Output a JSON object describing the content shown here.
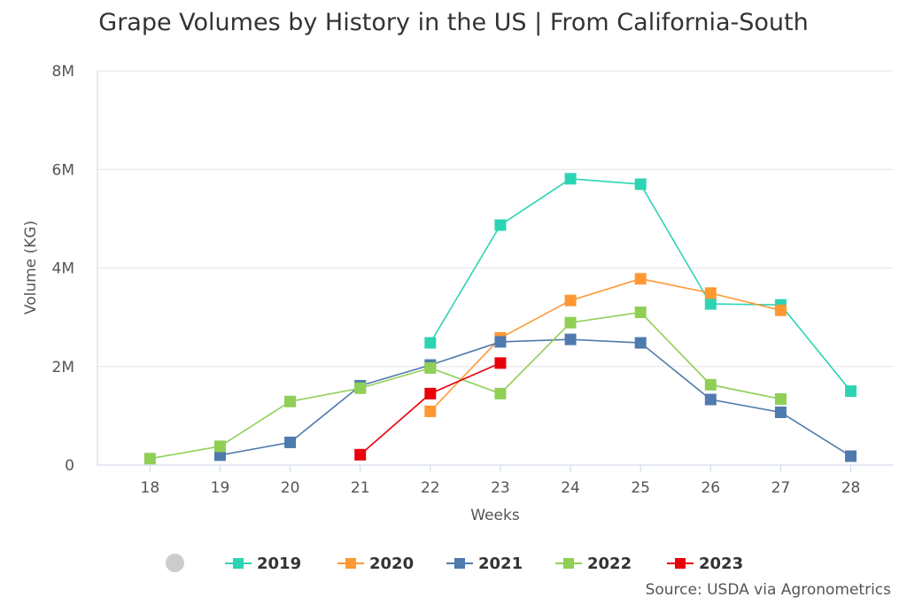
{
  "chart_data": {
    "type": "line",
    "title": "Grape Volumes by History in the US | From California-South",
    "xlabel": "Weeks",
    "ylabel": "Volume (KG)",
    "x": [
      18,
      19,
      20,
      21,
      22,
      23,
      24,
      25,
      26,
      27,
      28
    ],
    "ylim": [
      0,
      8000000
    ],
    "yticks": [
      0,
      2000000,
      4000000,
      6000000,
      8000000
    ],
    "ytick_labels": [
      "0",
      "2M",
      "4M",
      "6M",
      "8M"
    ],
    "grid": "horizontal",
    "legend_position": "bottom",
    "series": [
      {
        "name": "2019",
        "color": "#2dd4b3",
        "values": [
          null,
          null,
          null,
          null,
          2480000,
          4870000,
          5810000,
          5700000,
          3270000,
          3250000,
          1500000
        ]
      },
      {
        "name": "2020",
        "color": "#ff9833",
        "values": [
          null,
          null,
          null,
          null,
          1090000,
          2580000,
          3340000,
          3780000,
          3490000,
          3140000,
          null
        ]
      },
      {
        "name": "2021",
        "color": "#4f7aad",
        "values": [
          null,
          200000,
          460000,
          1610000,
          2030000,
          2500000,
          2550000,
          2480000,
          1330000,
          1070000,
          180000
        ]
      },
      {
        "name": "2022",
        "color": "#8fcf55",
        "values": [
          130000,
          380000,
          1290000,
          1560000,
          1970000,
          1450000,
          2890000,
          3100000,
          1630000,
          1340000,
          null
        ]
      },
      {
        "name": "2023",
        "color": "#e8000a",
        "values": [
          null,
          null,
          null,
          210000,
          1450000,
          2070000,
          null,
          null,
          null,
          null,
          null
        ]
      }
    ]
  },
  "source": "Source: USDA via Agronometrics"
}
